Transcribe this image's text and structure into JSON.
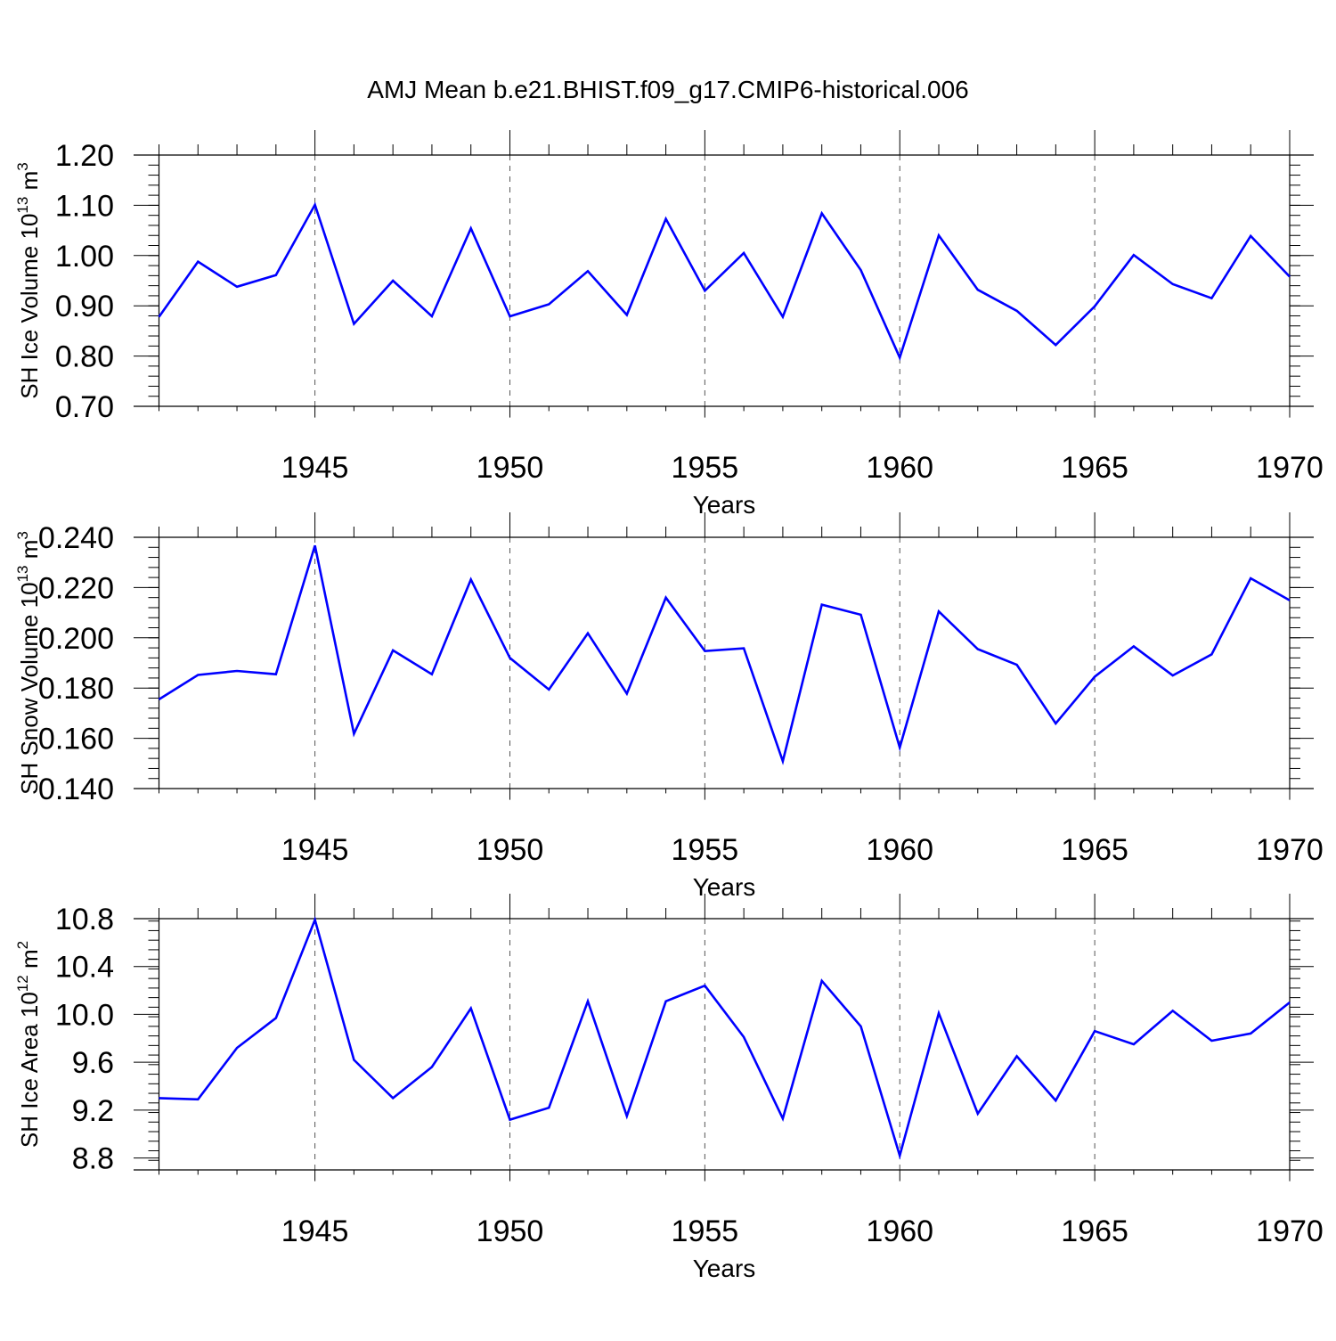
{
  "title": "AMJ Mean b.e21.BHIST.f09_g17.CMIP6-historical.006",
  "colors": {
    "series": "#0000ff",
    "axis": "#000000",
    "grid": "#555555"
  },
  "chart_data": [
    {
      "type": "line",
      "ylabel_main": "SH Ice Volume 10",
      "ylabel_exp1": "13",
      "ylabel_mid": " m",
      "ylabel_exp2": "3",
      "xlabel": "Years",
      "xlim": [
        1941,
        1970
      ],
      "ylim": [
        0.7,
        1.2
      ],
      "xticks": [
        1945,
        1950,
        1955,
        1960,
        1965,
        1970
      ],
      "yticks": [
        "0.70",
        "0.80",
        "0.90",
        "1.00",
        "1.10",
        "1.20"
      ],
      "grid": "vertical dashed at major x ticks",
      "series": [
        {
          "x": [
            1941,
            1942,
            1943,
            1944,
            1945,
            1946,
            1947,
            1948,
            1949,
            1950,
            1951,
            1952,
            1953,
            1954,
            1955,
            1956,
            1957,
            1958,
            1959,
            1960,
            1961,
            1962,
            1963,
            1964,
            1965,
            1966,
            1967,
            1968,
            1969,
            1970
          ],
          "values": [
            0.878,
            0.988,
            0.938,
            0.961,
            1.101,
            0.864,
            0.95,
            0.879,
            1.054,
            0.879,
            0.903,
            0.969,
            0.882,
            1.073,
            0.93,
            1.005,
            0.878,
            1.084,
            0.971,
            0.797,
            1.04,
            0.932,
            0.89,
            0.822,
            0.899,
            1.001,
            0.943,
            0.915,
            1.039,
            0.958
          ]
        }
      ]
    },
    {
      "type": "line",
      "ylabel_main": "SH Snow Volume 10",
      "ylabel_exp1": "13",
      "ylabel_mid": " m",
      "ylabel_exp2": "3",
      "xlabel": "Years",
      "xlim": [
        1941,
        1970
      ],
      "ylim": [
        0.14,
        0.24
      ],
      "xticks": [
        1945,
        1950,
        1955,
        1960,
        1965,
        1970
      ],
      "yticks": [
        "0.140",
        "0.160",
        "0.180",
        "0.200",
        "0.220",
        "0.240"
      ],
      "grid": "vertical dashed at major x ticks",
      "series": [
        {
          "x": [
            1941,
            1942,
            1943,
            1944,
            1945,
            1946,
            1947,
            1948,
            1949,
            1950,
            1951,
            1952,
            1953,
            1954,
            1955,
            1956,
            1957,
            1958,
            1959,
            1960,
            1961,
            1962,
            1963,
            1964,
            1965,
            1966,
            1967,
            1968,
            1969,
            1970
          ],
          "values": [
            0.1755,
            0.1852,
            0.1868,
            0.1855,
            0.2367,
            0.1618,
            0.195,
            0.1855,
            0.2232,
            0.192,
            0.1794,
            0.2018,
            0.1778,
            0.216,
            0.1947,
            0.1958,
            0.1509,
            0.2132,
            0.2092,
            0.1563,
            0.2105,
            0.1955,
            0.1893,
            0.1659,
            0.1845,
            0.1966,
            0.185,
            0.1934,
            0.2237,
            0.2149
          ]
        }
      ]
    },
    {
      "type": "line",
      "ylabel_main": "SH Ice Area 10",
      "ylabel_exp1": "12",
      "ylabel_mid": " m",
      "ylabel_exp2": "2",
      "xlabel": "Years",
      "xlim": [
        1941,
        1970
      ],
      "ylim": [
        8.7,
        10.8
      ],
      "xticks": [
        1945,
        1950,
        1955,
        1960,
        1965,
        1970
      ],
      "yticks": [
        "8.8",
        "9.2",
        "9.6",
        "10.0",
        "10.4",
        "10.8"
      ],
      "grid": "vertical dashed at major x ticks",
      "series": [
        {
          "x": [
            1941,
            1942,
            1943,
            1944,
            1945,
            1946,
            1947,
            1948,
            1949,
            1950,
            1951,
            1952,
            1953,
            1954,
            1955,
            1956,
            1957,
            1958,
            1959,
            1960,
            1961,
            1962,
            1963,
            1964,
            1965,
            1966,
            1967,
            1968,
            1969,
            1970
          ],
          "values": [
            9.3,
            9.29,
            9.72,
            9.97,
            10.79,
            9.62,
            9.3,
            9.56,
            10.05,
            9.12,
            9.22,
            10.11,
            9.15,
            10.11,
            10.24,
            9.81,
            9.13,
            10.28,
            9.9,
            8.82,
            10.01,
            9.17,
            9.65,
            9.28,
            9.86,
            9.75,
            10.03,
            9.78,
            9.84,
            10.1
          ]
        }
      ]
    }
  ]
}
